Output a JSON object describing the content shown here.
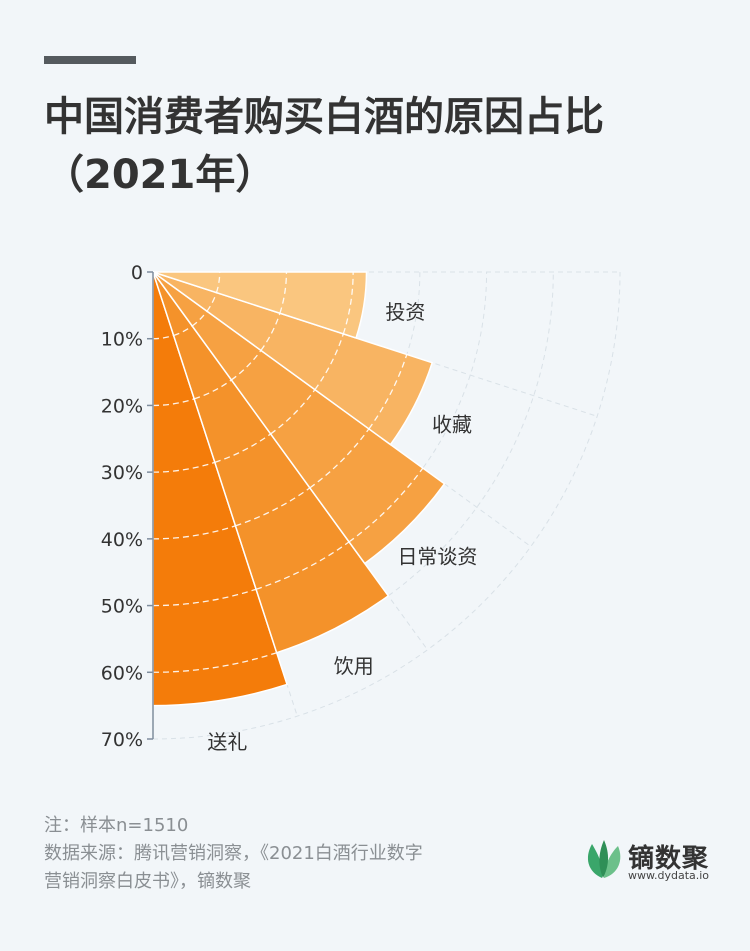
{
  "title": "中国消费者购买白酒的原因占比（2021年）",
  "chart_data": {
    "type": "polar-bar",
    "title": "中国消费者购买白酒的原因占比（2021年）",
    "categories": [
      "送礼",
      "饮用",
      "日常谈资",
      "收藏",
      "投资"
    ],
    "values": [
      65,
      60,
      54,
      44,
      32
    ],
    "unit": "%",
    "rlim": [
      0,
      70
    ],
    "ticks": [
      "0",
      "10%",
      "20%",
      "30%",
      "40%",
      "50%",
      "60%",
      "70%"
    ],
    "colors": [
      "#f47c0a",
      "#f4922a",
      "#f6a142",
      "#f8b462",
      "#fac67f"
    ]
  },
  "footer": {
    "note": "注：样本n=1510",
    "source_line1": "数据来源：腾讯营销洞察，《2021白酒行业数字",
    "source_line2": "营销洞察白皮书》，镝数聚"
  },
  "brand": {
    "name": "镝数聚",
    "url": "www.dydata.io"
  }
}
